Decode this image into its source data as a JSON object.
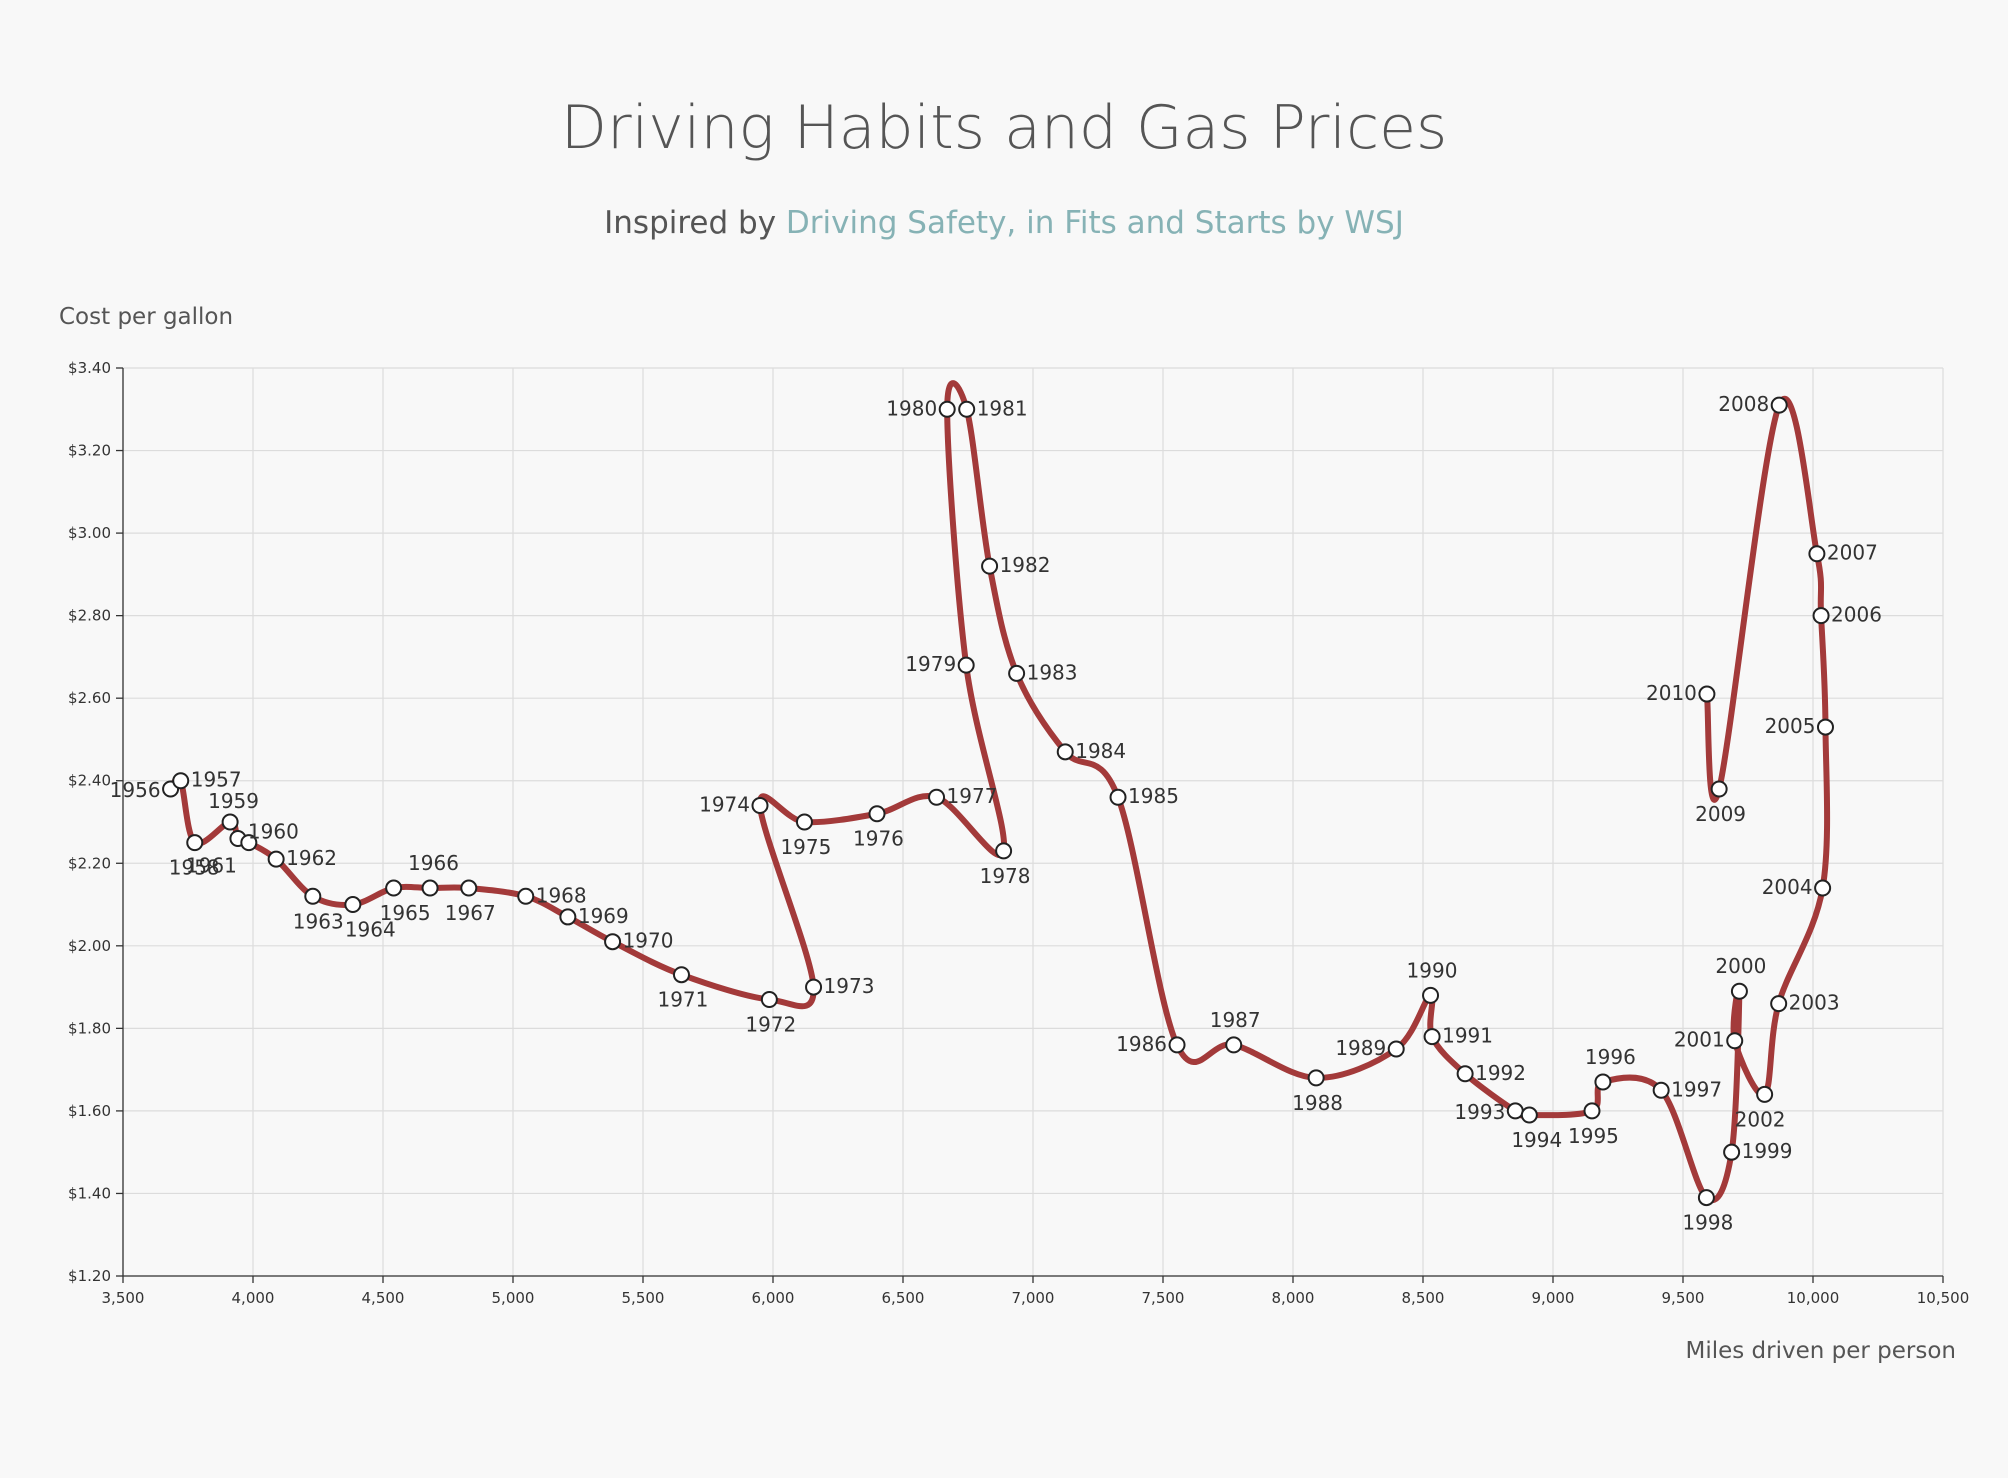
{
  "chart_data": {
    "type": "line",
    "title": "Driving Habits and Gas Prices",
    "subtitle_prefix": "Inspired by ",
    "subtitle_link": "Driving Safety, in Fits and Starts by WSJ",
    "xlabel": "Miles driven per person",
    "ylabel": "Cost per gallon",
    "xlim": [
      3500,
      10500
    ],
    "ylim": [
      1.2,
      3.4
    ],
    "x_ticks": [
      "3,500",
      "4,000",
      "4,500",
      "5,000",
      "5,500",
      "6,000",
      "6,500",
      "7,000",
      "7,500",
      "8,000",
      "8,500",
      "9,000",
      "9,500",
      "10,000",
      "10,500"
    ],
    "y_ticks": [
      "$1.20",
      "$1.40",
      "$1.60",
      "$1.80",
      "$2.00",
      "$2.20",
      "$2.40",
      "$2.60",
      "$2.80",
      "$3.00",
      "$3.20",
      "$3.40"
    ],
    "grid": true,
    "colors": {
      "line": "#a33a3a",
      "link": "#86b2b5"
    },
    "points": [
      {
        "label": "1956",
        "miles": 3683,
        "gas": 2.38
      },
      {
        "label": "1957",
        "miles": 3722,
        "gas": 2.4
      },
      {
        "label": "1958",
        "miles": 3776,
        "gas": 2.25
      },
      {
        "label": "1959",
        "miles": 3912,
        "gas": 2.3
      },
      {
        "label": "1960",
        "miles": 3942,
        "gas": 2.26
      },
      {
        "label": "1961",
        "miles": 3984,
        "gas": 2.25
      },
      {
        "label": "1962",
        "miles": 4089,
        "gas": 2.21
      },
      {
        "label": "1963",
        "miles": 4230,
        "gas": 2.12
      },
      {
        "label": "1964",
        "miles": 4384,
        "gas": 2.1
      },
      {
        "label": "1965",
        "miles": 4541,
        "gas": 2.14
      },
      {
        "label": "1966",
        "miles": 4681,
        "gas": 2.14
      },
      {
        "label": "1967",
        "miles": 4830,
        "gas": 2.14
      },
      {
        "label": "1968",
        "miles": 5049,
        "gas": 2.12
      },
      {
        "label": "1969",
        "miles": 5211,
        "gas": 2.07
      },
      {
        "label": "1970",
        "miles": 5383,
        "gas": 2.01
      },
      {
        "label": "1971",
        "miles": 5648,
        "gas": 1.93
      },
      {
        "label": "1972",
        "miles": 5986,
        "gas": 1.87
      },
      {
        "label": "1973",
        "miles": 6156,
        "gas": 1.9
      },
      {
        "label": "1974",
        "miles": 5950,
        "gas": 2.34
      },
      {
        "label": "1975",
        "miles": 6121,
        "gas": 2.3
      },
      {
        "label": "1976",
        "miles": 6400,
        "gas": 2.32
      },
      {
        "label": "1977",
        "miles": 6629,
        "gas": 2.36
      },
      {
        "label": "1978",
        "miles": 6887,
        "gas": 2.23
      },
      {
        "label": "1979",
        "miles": 6743,
        "gas": 2.68
      },
      {
        "label": "1980",
        "miles": 6670,
        "gas": 3.3
      },
      {
        "label": "1981",
        "miles": 6745,
        "gas": 3.3
      },
      {
        "label": "1982",
        "miles": 6833,
        "gas": 2.92
      },
      {
        "label": "1983",
        "miles": 6937,
        "gas": 2.66
      },
      {
        "label": "1984",
        "miles": 7124,
        "gas": 2.47
      },
      {
        "label": "1985",
        "miles": 7327,
        "gas": 2.36
      },
      {
        "label": "1986",
        "miles": 7554,
        "gas": 1.76
      },
      {
        "label": "1987",
        "miles": 7772,
        "gas": 1.76
      },
      {
        "label": "1988",
        "miles": 8089,
        "gas": 1.68
      },
      {
        "label": "1989",
        "miles": 8397,
        "gas": 1.75
      },
      {
        "label": "1990",
        "miles": 8529,
        "gas": 1.88
      },
      {
        "label": "1991",
        "miles": 8535,
        "gas": 1.78
      },
      {
        "label": "1992",
        "miles": 8662,
        "gas": 1.69
      },
      {
        "label": "1993",
        "miles": 8855,
        "gas": 1.6
      },
      {
        "label": "1994",
        "miles": 8909,
        "gas": 1.59
      },
      {
        "label": "1995",
        "miles": 9150,
        "gas": 1.6
      },
      {
        "label": "1996",
        "miles": 9192,
        "gas": 1.67
      },
      {
        "label": "1997",
        "miles": 9416,
        "gas": 1.65
      },
      {
        "label": "1998",
        "miles": 9590,
        "gas": 1.39
      },
      {
        "label": "1999",
        "miles": 9687,
        "gas": 1.5
      },
      {
        "label": "2000",
        "miles": 9717,
        "gas": 1.89
      },
      {
        "label": "2001",
        "miles": 9699,
        "gas": 1.77
      },
      {
        "label": "2002",
        "miles": 9814,
        "gas": 1.64
      },
      {
        "label": "2003",
        "miles": 9868,
        "gas": 1.86
      },
      {
        "label": "2004",
        "miles": 10037,
        "gas": 2.14
      },
      {
        "label": "2005",
        "miles": 10048,
        "gas": 2.53
      },
      {
        "label": "2006",
        "miles": 10031,
        "gas": 2.8
      },
      {
        "label": "2007",
        "miles": 10015,
        "gas": 2.95
      },
      {
        "label": "2008",
        "miles": 9870,
        "gas": 3.31
      },
      {
        "label": "2009",
        "miles": 9639,
        "gas": 2.38
      },
      {
        "label": "2010",
        "miles": 9592,
        "gas": 2.61
      }
    ]
  }
}
